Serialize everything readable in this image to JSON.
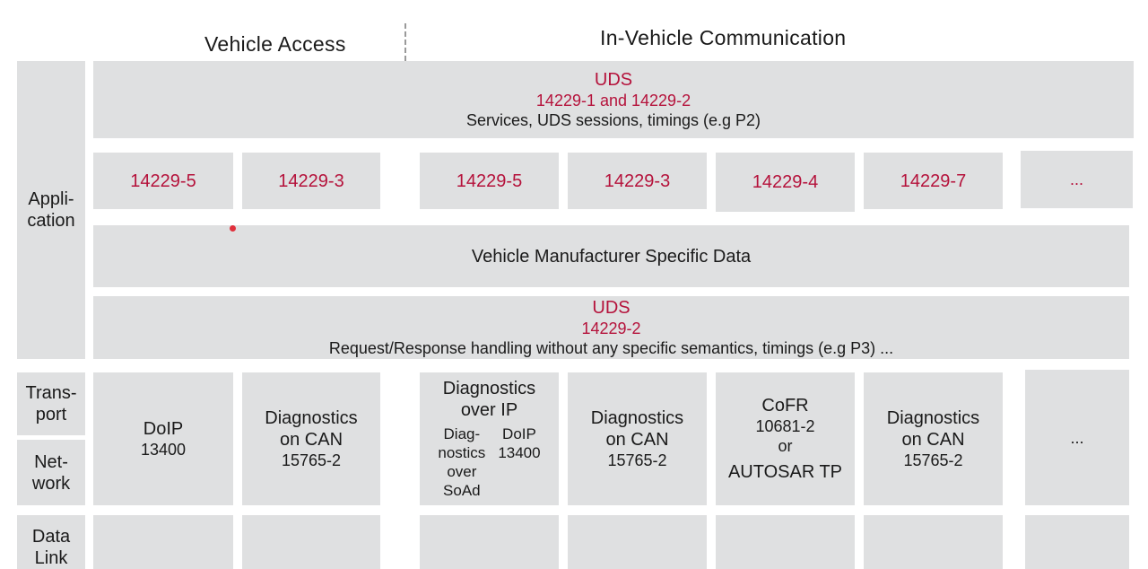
{
  "headers": {
    "vehicle_access": "Vehicle Access",
    "in_vehicle": "In-Vehicle Communication"
  },
  "layers": {
    "application": [
      "Appli-",
      "cation"
    ],
    "transport": [
      "Trans-",
      "port"
    ],
    "network": [
      "Net-",
      "work"
    ],
    "data_link": [
      "Data",
      "Link"
    ]
  },
  "uds_top": {
    "title": "UDS",
    "standard": "14229-1 and 14229-2",
    "desc": "Services, UDS sessions, timings (e.g P2)"
  },
  "implementations": [
    "14229-5",
    "14229-3",
    "14229-5",
    "14229-3",
    "14229-4",
    "14229-7",
    "..."
  ],
  "manufacturer_data": "Vehicle Manufacturer Specific Data",
  "uds_bottom": {
    "title": "UDS",
    "standard": "14229-2",
    "desc": "Request/Response handling without any specific semantics, timings (e.g P3) ..."
  },
  "transport": {
    "doip": {
      "name": "DoIP",
      "std": "13400"
    },
    "can1": {
      "line1": "Diagnostics",
      "line2": "on CAN",
      "std": "15765-2"
    },
    "over_ip": {
      "title1": "Diagnostics",
      "title2": "over IP",
      "soad": [
        "Diag-",
        "nostics",
        "over",
        "SoAd"
      ],
      "doip": [
        "DoIP",
        "13400"
      ]
    },
    "can2": {
      "line1": "Diagnostics",
      "line2": "on CAN",
      "std": "15765-2"
    },
    "cofr": {
      "name": "CoFR",
      "std": "10681-2",
      "or": "or",
      "alt": "AUTOSAR TP"
    },
    "can3": {
      "line1": "Diagnostics",
      "line2": "on CAN",
      "std": "15765-2"
    },
    "more": "..."
  },
  "colors": {
    "accent_red": "#b5123b",
    "box_gray": "#dfe0e1"
  }
}
